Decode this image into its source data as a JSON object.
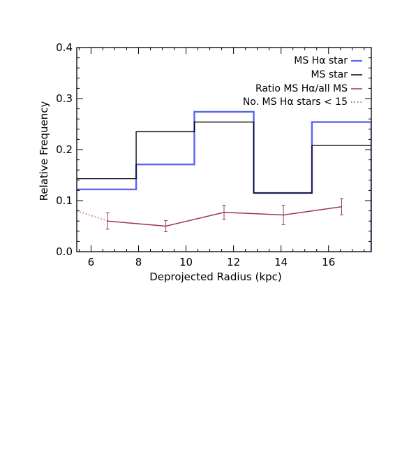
{
  "chart_data": {
    "type": "line",
    "xlabel": "Deprojected Radius (kpc)",
    "ylabel": "Relative Frequency",
    "xlim": [
      5.4,
      17.8
    ],
    "ylim": [
      0,
      0.4
    ],
    "xticks": [
      6,
      8,
      10,
      12,
      14,
      16
    ],
    "yticks": [
      0.0,
      0.1,
      0.2,
      0.3,
      0.4
    ],
    "xtick_labels": [
      "6",
      "8",
      "10",
      "12",
      "14",
      "16"
    ],
    "ytick_labels": [
      "0.0",
      "0.1",
      "0.2",
      "0.3",
      "0.4"
    ],
    "grid": false,
    "legend_position": "top-right",
    "bin_edges": [
      5.4,
      7.9,
      10.35,
      12.85,
      15.3,
      17.8
    ],
    "series": [
      {
        "name": "MS Hα star",
        "style": "step",
        "color": "#5a64f0",
        "values": [
          0.122,
          0.171,
          0.274,
          0.115,
          0.254
        ]
      },
      {
        "name": "MS star",
        "style": "step",
        "color": "#000000",
        "values": [
          0.143,
          0.235,
          0.254,
          0.115,
          0.208
        ]
      },
      {
        "name": "Ratio MS Hα/all MS",
        "style": "line",
        "color": "#9a3556",
        "x": [
          6.7,
          9.15,
          11.6,
          14.1,
          16.55
        ],
        "y": [
          0.06,
          0.05,
          0.077,
          0.072,
          0.088
        ],
        "yerr": [
          0.016,
          0.011,
          0.014,
          0.019,
          0.016
        ]
      },
      {
        "name": "No. MS Hα stars < 15",
        "style": "dotted",
        "color": "#9a3556",
        "x": [
          5.4,
          6.7
        ],
        "y": [
          0.08,
          0.06
        ]
      }
    ]
  }
}
